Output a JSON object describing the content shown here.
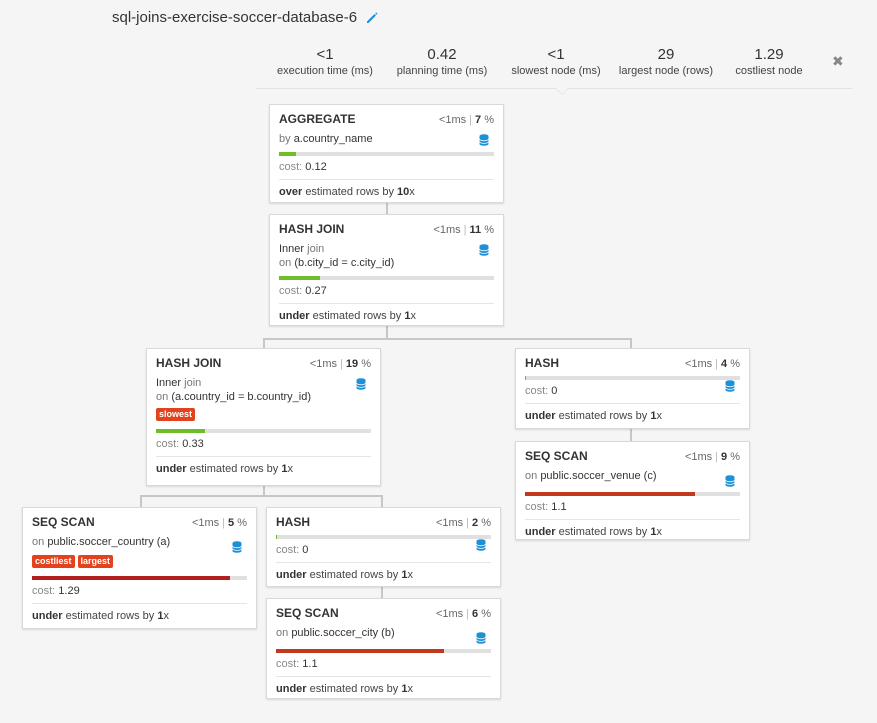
{
  "page": {
    "title": "sql-joins-exercise-soccer-database-6"
  },
  "stats": [
    {
      "value": "<1",
      "label": "execution time (ms)"
    },
    {
      "value": "0.42",
      "label": "planning time (ms)"
    },
    {
      "value": "<1",
      "label": "slowest node (ms)"
    },
    {
      "value": "29",
      "label": "largest node (rows)"
    },
    {
      "value": "1.29",
      "label": "costliest node"
    }
  ],
  "close_symbol": "✖",
  "icons": {
    "edit": "pencil-icon",
    "close": "close-icon",
    "database": "database-icon"
  },
  "colors": {
    "green": "#6cbf2a",
    "red": "#c0391b",
    "darkred": "#b21f1f",
    "tag": "#e2431e",
    "accent": "#1e90d6"
  },
  "nodes": {
    "aggregate": {
      "name": "AGGREGATE",
      "time": "<1ms",
      "pct": "7",
      "pct_unit": "%",
      "line1_prefix": "by",
      "line1_value": "a.country_name",
      "cost_label": "cost:",
      "cost": "0.12",
      "bar_fraction": 0.08,
      "est_dir": "over",
      "est_text": "estimated rows by",
      "est_factor": "10",
      "est_x": "x"
    },
    "hash_join_top": {
      "name": "HASH JOIN",
      "time": "<1ms",
      "pct": "11",
      "pct_unit": "%",
      "line1_a": "Inner",
      "line1_b": "join",
      "line2_prefix": "on",
      "line2_value": "(b.city_id = c.city_id)",
      "cost_label": "cost:",
      "cost": "0.27",
      "bar_fraction": 0.19,
      "est_dir": "under",
      "est_text": "estimated rows by",
      "est_factor": "1",
      "est_x": "x"
    },
    "hash_join_left": {
      "name": "HASH JOIN",
      "time": "<1ms",
      "pct": "19",
      "pct_unit": "%",
      "line1_a": "Inner",
      "line1_b": "join",
      "line2_prefix": "on",
      "line2_value": "(a.country_id = b.country_id)",
      "tag": "slowest",
      "cost_label": "cost:",
      "cost": "0.33",
      "bar_fraction": 0.23,
      "est_dir": "under",
      "est_text": "estimated rows by",
      "est_factor": "1",
      "est_x": "x"
    },
    "hash_right": {
      "name": "HASH",
      "time": "<1ms",
      "pct": "4",
      "pct_unit": "%",
      "cost_label": "cost:",
      "cost": "0",
      "bar_fraction": 0.005,
      "est_dir": "under",
      "est_text": "estimated rows by",
      "est_factor": "1",
      "est_x": "x"
    },
    "seq_scan_venue": {
      "name": "SEQ SCAN",
      "time": "<1ms",
      "pct": "9",
      "pct_unit": "%",
      "line1_prefix": "on",
      "line1_value": "public.soccer_venue (c)",
      "cost_label": "cost:",
      "cost": "1.1",
      "bar_fraction": 0.79,
      "est_dir": "under",
      "est_text": "estimated rows by",
      "est_factor": "1",
      "est_x": "x"
    },
    "seq_scan_country": {
      "name": "SEQ SCAN",
      "time": "<1ms",
      "pct": "5",
      "pct_unit": "%",
      "line1_prefix": "on",
      "line1_value": "public.soccer_country (a)",
      "tag1": "costliest",
      "tag2": "largest",
      "cost_label": "cost:",
      "cost": "1.29",
      "bar_fraction": 0.92,
      "est_dir": "under",
      "est_text": "estimated rows by",
      "est_factor": "1",
      "est_x": "x"
    },
    "hash_mid": {
      "name": "HASH",
      "time": "<1ms",
      "pct": "2",
      "pct_unit": "%",
      "cost_label": "cost:",
      "cost": "0",
      "bar_fraction": 0.005,
      "est_dir": "under",
      "est_text": "estimated rows by",
      "est_factor": "1",
      "est_x": "x"
    },
    "seq_scan_city": {
      "name": "SEQ SCAN",
      "time": "<1ms",
      "pct": "6",
      "pct_unit": "%",
      "line1_prefix": "on",
      "line1_value": "public.soccer_city (b)",
      "cost_label": "cost:",
      "cost": "1.1",
      "bar_fraction": 0.78,
      "est_dir": "under",
      "est_text": "estimated rows by",
      "est_factor": "1",
      "est_x": "x"
    }
  }
}
